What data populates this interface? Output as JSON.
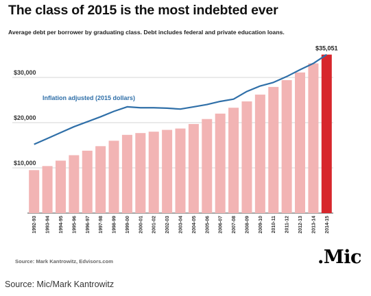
{
  "figure": {
    "source_note": "Source: Mark Kantrowitz, Edvisors.com",
    "logo": ".Mic",
    "caption": "Source: Mic/Mark Kantrowitz"
  },
  "chart_data": {
    "type": "bar",
    "title": "The class of 2015 is the most indebted ever",
    "subtitle": "Average debt per borrower by graduating class. Debt includes federal and private education loans.",
    "xlabel": "",
    "ylabel": "",
    "ylim": [
      0,
      36500
    ],
    "yticks": [
      10000,
      20000,
      30000
    ],
    "ytick_labels": [
      "$10,000",
      "$20,000",
      "$30,000"
    ],
    "grid": true,
    "categories": [
      "1992-93",
      "1993-94",
      "1994-95",
      "1995-96",
      "1996-97",
      "1997-98",
      "1998-99",
      "1999-00",
      "2000-01",
      "2001-02",
      "2002-03",
      "2003-04",
      "2004-05",
      "2005-06",
      "2006-07",
      "2007-08",
      "2008-09",
      "2009-10",
      "2010-11",
      "2011-12",
      "2012-13",
      "2013-14",
      "2014-15"
    ],
    "series": [
      {
        "type": "bar",
        "values": [
          9500,
          10400,
          11600,
          12800,
          13800,
          14800,
          16000,
          17300,
          17700,
          18000,
          18400,
          18700,
          19700,
          20800,
          22000,
          23300,
          24700,
          26200,
          27900,
          29400,
          31100,
          33100,
          35051
        ],
        "color": "#f2b4b4",
        "highlight_color": "#d7262c"
      },
      {
        "type": "line",
        "name": "Inflation adjusted (2015 dollars)",
        "values": [
          15200,
          16500,
          17800,
          19100,
          20200,
          21300,
          22500,
          23500,
          23300,
          23300,
          23200,
          23000,
          23500,
          24000,
          24700,
          25200,
          26900,
          28100,
          28900,
          30200,
          31700,
          33100,
          35051
        ],
        "color": "#2f6fa8"
      }
    ],
    "annotations": [
      {
        "label": "$35,051",
        "category": "2014-15"
      }
    ]
  }
}
